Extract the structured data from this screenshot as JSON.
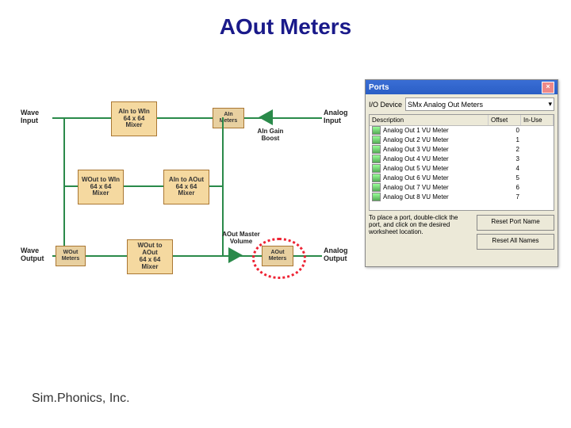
{
  "title": "AOut Meters",
  "footer": "Sim.Phonics, Inc.",
  "colors": {
    "title": "#1a1a8a",
    "wire": "#2a8a4a",
    "box_fill": "#f5d9a0",
    "box_border": "#aa7733",
    "highlight": "#ee2233",
    "win_titlebar": "#3a6ed5",
    "win_bg": "#ece9d8"
  },
  "diagram": {
    "labels": {
      "wave_input": "Wave\nInput",
      "analog_input": "Analog\nInput",
      "wave_output": "Wave\nOutput",
      "analog_output": "Analog\nOutput",
      "ain_gain": "AIn Gain\nBoost",
      "aout_master": "AOut Master\nVolume"
    },
    "boxes": {
      "ain_to_win": "AIn to WIn\n64 x 64\nMixer",
      "ain_meters": "AIn\nMeters",
      "wout_to_win": "WOut to WIn\n64 x 64\nMixer",
      "ain_to_aout": "AIn to AOut\n64 x 64\nMixer",
      "wout_meters": "WOut\nMeters",
      "wout_to_aout": "WOut to AOut\n64 x 64\nMixer",
      "aout_meters": "AOut\nMeters"
    }
  },
  "ports_window": {
    "title": "Ports",
    "device_label": "I/O Device",
    "device_value": "SMx Analog Out Meters",
    "columns": {
      "description": "Description",
      "offset": "Offset",
      "inuse": "In-Use"
    },
    "rows": [
      {
        "desc": "Analog Out 1 VU Meter",
        "offset": "0"
      },
      {
        "desc": "Analog Out 2 VU Meter",
        "offset": "1"
      },
      {
        "desc": "Analog Out 3 VU Meter",
        "offset": "2"
      },
      {
        "desc": "Analog Out 4 VU Meter",
        "offset": "3"
      },
      {
        "desc": "Analog Out 5 VU Meter",
        "offset": "4"
      },
      {
        "desc": "Analog Out 6 VU Meter",
        "offset": "5"
      },
      {
        "desc": "Analog Out 7 VU Meter",
        "offset": "6"
      },
      {
        "desc": "Analog Out 8 VU Meter",
        "offset": "7"
      }
    ],
    "hint": "To place a port, double-click the port, and click on the desired worksheet location.",
    "buttons": {
      "reset_port": "Reset Port Name",
      "reset_all": "Reset All Names"
    }
  }
}
